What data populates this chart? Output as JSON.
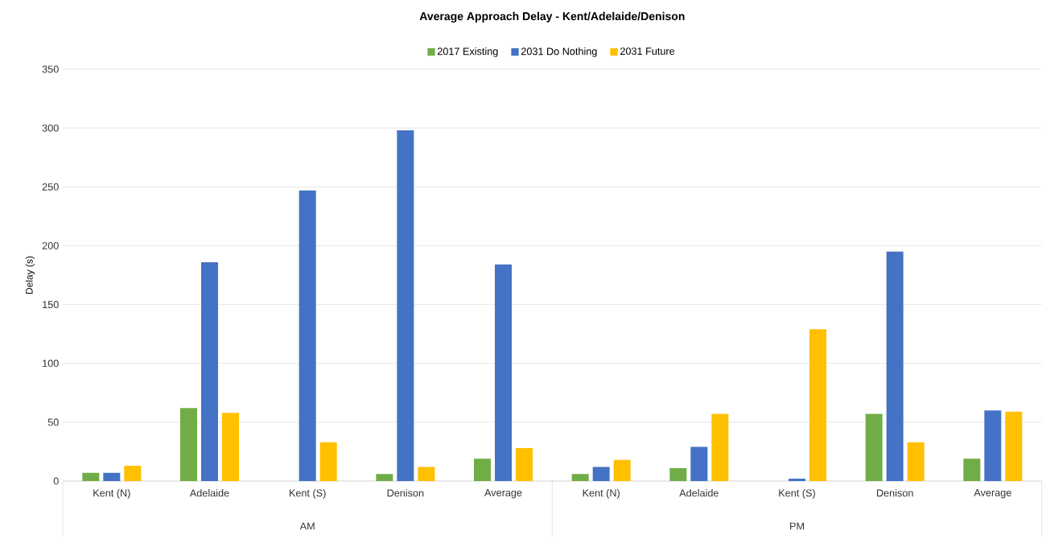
{
  "chart_data": {
    "type": "bar",
    "title": "Average Approach Delay - Kent/Adelaide/Denison",
    "ylabel": "Delay (s)",
    "categories": [
      "Kent (N)",
      "Adelaide",
      "Kent (S)",
      "Denison",
      "Average",
      "Kent (N)",
      "Adelaide",
      "Kent (S)",
      "Denison",
      "Average"
    ],
    "series": [
      {
        "name": "2017 Existing",
        "color": "#70ad47",
        "values": [
          7,
          62,
          0,
          6,
          19,
          6,
          11,
          0,
          57,
          19
        ]
      },
      {
        "name": "2031 Do Nothing",
        "color": "#4472c4",
        "values": [
          7,
          186,
          247,
          298,
          184,
          12,
          29,
          2,
          195,
          60
        ]
      },
      {
        "name": "2031 Future",
        "color": "#ffc000",
        "values": [
          13,
          58,
          33,
          12,
          28,
          18,
          57,
          129,
          33,
          59
        ]
      }
    ],
    "annotations": [
      "AM",
      "PM"
    ],
    "ylim": [
      0,
      350
    ],
    "yticks": [
      0,
      50,
      100,
      150,
      200,
      250,
      300,
      350
    ],
    "grid": "y",
    "legend": "top"
  }
}
